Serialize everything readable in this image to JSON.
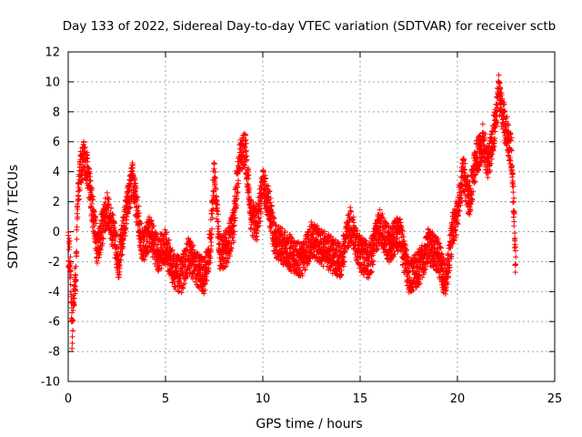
{
  "chart_data": {
    "type": "scatter",
    "title": "Day 133 of 2022, Sidereal Day-to-day VTEC variation (SDTVAR) for receiver sctb",
    "xlabel": "GPS time / hours",
    "ylabel": "SDTVAR / TECUs",
    "xlim": [
      0,
      25
    ],
    "ylim": [
      -10,
      12
    ],
    "x_ticks": [
      "0",
      "5",
      "10",
      "15",
      "20",
      "25"
    ],
    "y_ticks": [
      "-10",
      "-8",
      "-6",
      "-4",
      "-2",
      "0",
      "2",
      "4",
      "6",
      "8",
      "10",
      "12"
    ],
    "grid": true,
    "marker": "+",
    "marker_color": "#ff0000",
    "series": [
      {
        "name": "SDTVAR",
        "trend": {
          "x": [
            0.0,
            0.1,
            0.2,
            0.3,
            0.4,
            0.5,
            0.6,
            0.8,
            1.0,
            1.2,
            1.5,
            1.8,
            2.0,
            2.3,
            2.6,
            3.0,
            3.3,
            3.6,
            3.8,
            4.2,
            4.6,
            5.0,
            5.4,
            5.8,
            6.2,
            6.6,
            7.0,
            7.3,
            7.5,
            7.8,
            8.2,
            8.5,
            8.8,
            9.1,
            9.4,
            9.7,
            10.0,
            10.3,
            10.6,
            11.0,
            11.5,
            12.0,
            12.5,
            13.0,
            13.5,
            14.0,
            14.5,
            15.0,
            15.5,
            16.0,
            16.5,
            17.0,
            17.5,
            18.0,
            18.5,
            19.0,
            19.4,
            19.8,
            20.0,
            20.3,
            20.6,
            21.0,
            21.3,
            21.6,
            21.9,
            22.1,
            22.3,
            22.8,
            23.0
          ],
          "y": [
            -1.0,
            -2.0,
            -7.0,
            -4.0,
            -2.5,
            2.5,
            4.0,
            5.0,
            4.0,
            2.0,
            -1.0,
            0.5,
            1.5,
            0.0,
            -2.0,
            1.5,
            3.5,
            1.0,
            -1.0,
            0.0,
            -1.5,
            -1.0,
            -2.5,
            -3.0,
            -1.5,
            -2.5,
            -3.0,
            -1.0,
            4.0,
            -1.5,
            -1.0,
            0.5,
            5.0,
            5.5,
            1.0,
            0.5,
            3.0,
            2.0,
            -0.5,
            -1.0,
            -1.5,
            -2.0,
            -0.5,
            -1.0,
            -1.5,
            -2.0,
            0.5,
            -1.5,
            -2.0,
            0.5,
            -1.0,
            0.0,
            -3.0,
            -2.5,
            -1.0,
            -1.5,
            -3.5,
            0.5,
            1.0,
            4.0,
            2.0,
            5.0,
            6.0,
            4.5,
            7.0,
            9.5,
            8.0,
            5.0,
            -2.5
          ],
          "noise_tecu": 1.2,
          "points_per_hour": 180
        }
      }
    ]
  }
}
